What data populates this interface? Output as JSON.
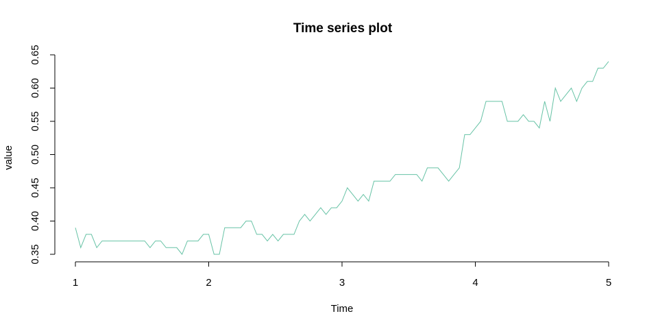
{
  "chart_data": {
    "type": "line",
    "title": "Time series plot",
    "xlabel": "Time",
    "ylabel": "value",
    "xlim": [
      1,
      5
    ],
    "ylim": [
      0.35,
      0.65
    ],
    "x_ticks": [
      1,
      2,
      3,
      4,
      5
    ],
    "x_tick_labels": [
      "1",
      "2",
      "3",
      "4",
      "5"
    ],
    "y_ticks": [
      0.35,
      0.4,
      0.45,
      0.5,
      0.55,
      0.6,
      0.65
    ],
    "y_tick_labels": [
      "0.35",
      "0.40",
      "0.45",
      "0.50",
      "0.55",
      "0.60",
      "0.65"
    ],
    "grid": false,
    "line_color": "#66c2a5",
    "series": [
      {
        "x": [
          1.0,
          1.04,
          1.08,
          1.12,
          1.16,
          1.2,
          1.24,
          1.28,
          1.32,
          1.36,
          1.4,
          1.44,
          1.48,
          1.52,
          1.56,
          1.6,
          1.64,
          1.68,
          1.72,
          1.76,
          1.8,
          1.84,
          1.88,
          1.92,
          1.96,
          2.0,
          2.04,
          2.08,
          2.12,
          2.16,
          2.2,
          2.24,
          2.28,
          2.32,
          2.36,
          2.4,
          2.44,
          2.48,
          2.52,
          2.56,
          2.6,
          2.64,
          2.68,
          2.72,
          2.76,
          2.8,
          2.84,
          2.88,
          2.92,
          2.96,
          3.0,
          3.04,
          3.08,
          3.12,
          3.16,
          3.2,
          3.24,
          3.28,
          3.32,
          3.36,
          3.4,
          3.44,
          3.48,
          3.52,
          3.56,
          3.6,
          3.64,
          3.68,
          3.72,
          3.76,
          3.8,
          3.84,
          3.88,
          3.92,
          3.96,
          4.0,
          4.04,
          4.08,
          4.12,
          4.16,
          4.2,
          4.24,
          4.28,
          4.32,
          4.36,
          4.4,
          4.44,
          4.48,
          4.52,
          4.56,
          4.6,
          4.64,
          4.68,
          4.72,
          4.76,
          4.8,
          4.84,
          4.88,
          4.92,
          4.96,
          5.0
        ],
        "values": [
          0.39,
          0.36,
          0.38,
          0.38,
          0.36,
          0.37,
          0.37,
          0.37,
          0.37,
          0.37,
          0.37,
          0.37,
          0.37,
          0.37,
          0.36,
          0.37,
          0.37,
          0.36,
          0.36,
          0.36,
          0.35,
          0.37,
          0.37,
          0.37,
          0.38,
          0.38,
          0.35,
          0.35,
          0.39,
          0.39,
          0.39,
          0.39,
          0.4,
          0.4,
          0.38,
          0.38,
          0.37,
          0.38,
          0.37,
          0.38,
          0.38,
          0.38,
          0.4,
          0.41,
          0.4,
          0.41,
          0.42,
          0.41,
          0.42,
          0.42,
          0.43,
          0.45,
          0.44,
          0.43,
          0.44,
          0.43,
          0.46,
          0.46,
          0.46,
          0.46,
          0.47,
          0.47,
          0.47,
          0.47,
          0.47,
          0.46,
          0.48,
          0.48,
          0.48,
          0.47,
          0.46,
          0.47,
          0.48,
          0.53,
          0.53,
          0.54,
          0.55,
          0.58,
          0.58,
          0.58,
          0.58,
          0.55,
          0.55,
          0.55,
          0.56,
          0.55,
          0.55,
          0.54,
          0.58,
          0.55,
          0.6,
          0.58,
          0.59,
          0.6,
          0.58,
          0.6,
          0.61,
          0.61,
          0.63,
          0.63,
          0.64
        ]
      }
    ]
  }
}
